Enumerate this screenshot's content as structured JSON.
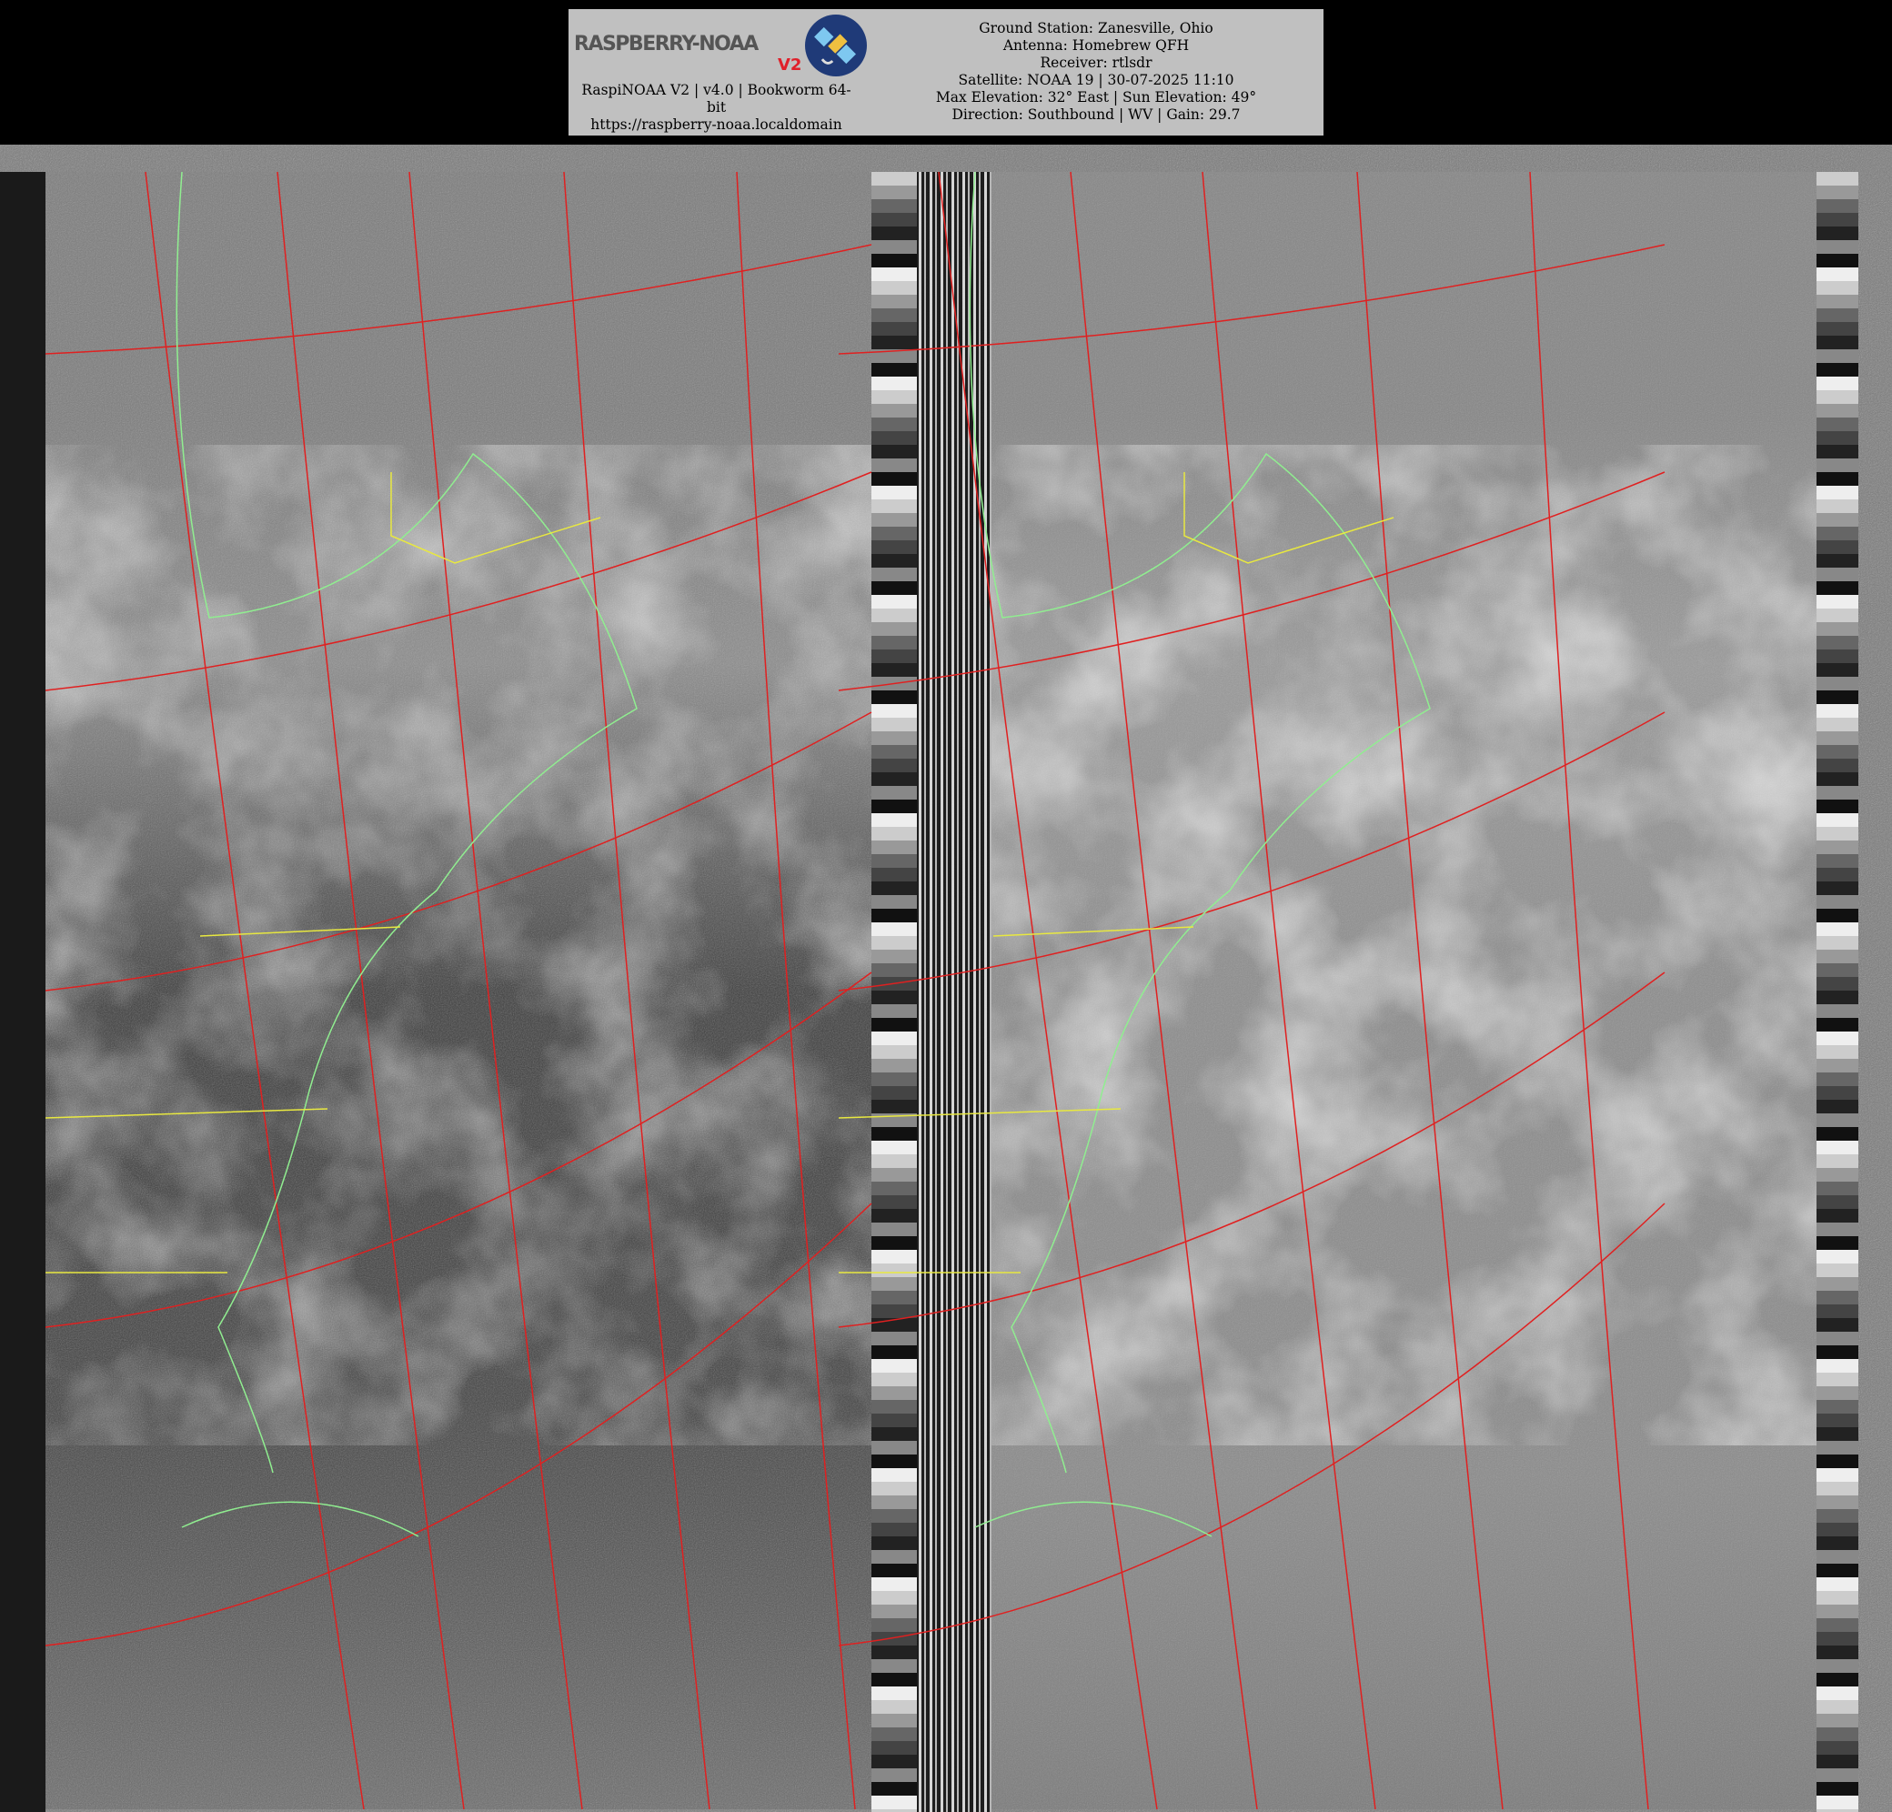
{
  "header": {
    "logo": {
      "text": "RASPBERRY-NOAA",
      "badge": "V2",
      "icon": "satellite-icon"
    },
    "left_lines": [
      "RaspiNOAA V2 | v4.0 | Bookworm 64-bit",
      "https://raspberry-noaa.localdomain"
    ],
    "right_lines": [
      "Ground Station: Zanesville, Ohio",
      "Antenna: Homebrew QFH",
      "Receiver: rtlsdr",
      "Satellite: NOAA 19 | 30-07-2025 11:10",
      "Max Elevation: 32° East | Sun Elevation: 49°",
      "Direction: Southbound | WV | Gain: 29.7"
    ]
  },
  "imagery": {
    "channels": 2,
    "overlay_colors": {
      "graticule": "#e02020",
      "coastline": "#90ee90",
      "borders": "#e8e840"
    }
  }
}
